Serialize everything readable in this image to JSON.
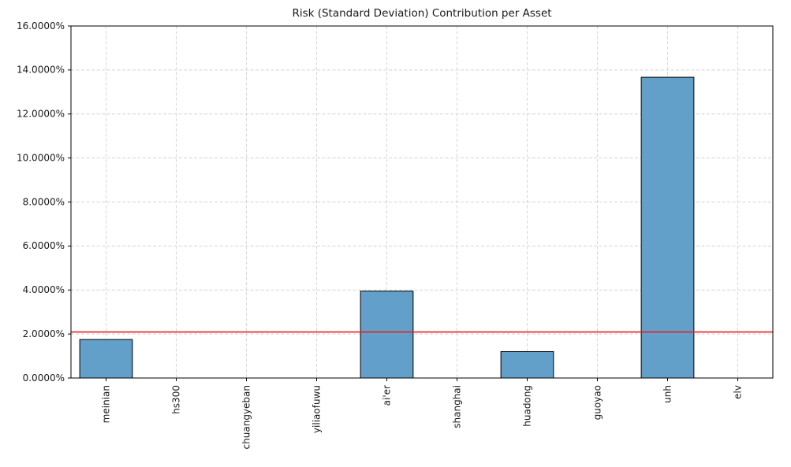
{
  "chart_data": {
    "type": "bar",
    "title": "Risk (Standard Deviation) Contribution per Asset",
    "categories": [
      "meinian",
      "hs300",
      "chuangyeban",
      "yiliaofuwu",
      "ai'er",
      "shanghai",
      "huadong",
      "guoyao",
      "unh",
      "elv"
    ],
    "values": [
      1.75,
      0.0,
      0.0,
      0.0,
      3.95,
      0.0,
      1.2,
      0.0,
      13.67,
      0.0
    ],
    "unit": "%",
    "xlabel": "",
    "ylabel": "",
    "ylim": [
      0,
      16
    ],
    "ytick_step": 2,
    "ytick_labels": [
      "0.0000%",
      "2.0000%",
      "4.0000%",
      "6.0000%",
      "8.0000%",
      "10.0000%",
      "12.0000%",
      "14.0000%",
      "16.0000%"
    ],
    "reference_line": {
      "value": 2.09,
      "color": "#e52222"
    },
    "bar_color": "#62a0ca",
    "bar_edge_color": "#000000",
    "grid": true,
    "grid_style": "dashed",
    "legend": null
  }
}
